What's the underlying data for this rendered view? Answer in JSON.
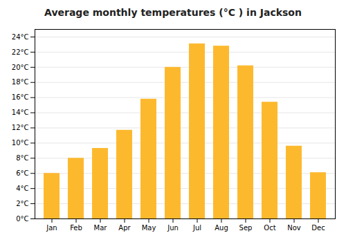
{
  "chart_data": {
    "type": "bar",
    "title": "Average monthly temperatures (°C ) in Jackson",
    "categories": [
      "Jan",
      "Feb",
      "Mar",
      "Apr",
      "May",
      "Jun",
      "Jul",
      "Aug",
      "Sep",
      "Oct",
      "Nov",
      "Dec"
    ],
    "values": [
      6.0,
      8.0,
      9.3,
      11.7,
      15.8,
      20.0,
      23.1,
      22.8,
      20.2,
      15.4,
      9.6,
      6.1
    ],
    "color": "#FDB92E",
    "ylim": [
      0,
      25
    ],
    "yticks": [
      {
        "value": 0,
        "label": "0°C"
      },
      {
        "value": 2,
        "label": "2°C"
      },
      {
        "value": 4,
        "label": "4°C"
      },
      {
        "value": 6,
        "label": "6°C"
      },
      {
        "value": 8,
        "label": "8°C"
      },
      {
        "value": 10,
        "label": "10°C"
      },
      {
        "value": 12,
        "label": "12°C"
      },
      {
        "value": 14,
        "label": "14°C"
      },
      {
        "value": 16,
        "label": "16°C"
      },
      {
        "value": 18,
        "label": "18°C"
      },
      {
        "value": 20,
        "label": "20°C"
      },
      {
        "value": 22,
        "label": "22°C"
      },
      {
        "value": 24,
        "label": "24°C"
      }
    ],
    "grid": true
  }
}
